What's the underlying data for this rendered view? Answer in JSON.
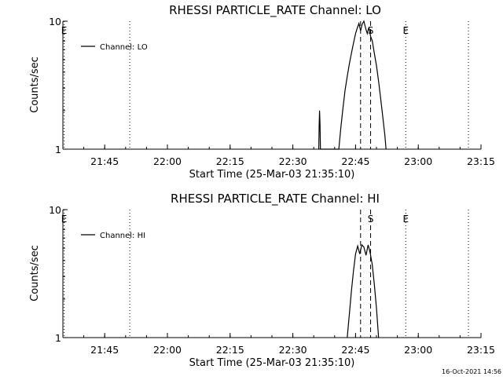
{
  "footer": {
    "timestamp": "16-Oct-2021 14:56"
  },
  "chart_data": [
    {
      "type": "line",
      "title": "RHESSI PARTICLE_RATE Channel: LO",
      "xlabel": "Start Time (25-Mar-03 21:35:10)",
      "ylabel": "Counts/sec",
      "yscale": "log",
      "ylim": [
        1,
        10
      ],
      "xlim_minutes_after_2130": [
        5,
        105
      ],
      "y_ticks": [
        {
          "value": 1,
          "label": "1"
        },
        {
          "value": 10,
          "label": "10"
        }
      ],
      "x_ticks": [
        {
          "t": 15,
          "label": "21:45"
        },
        {
          "t": 30,
          "label": "22:00"
        },
        {
          "t": 45,
          "label": "22:15"
        },
        {
          "t": 60,
          "label": "22:30"
        },
        {
          "t": 75,
          "label": "22:45"
        },
        {
          "t": 90,
          "label": "23:00"
        },
        {
          "t": 105,
          "label": "23:15"
        }
      ],
      "legend": {
        "position": "top-left",
        "entries": [
          "Channel: LO"
        ]
      },
      "event_lines": [
        {
          "t": 5.3,
          "label": "E",
          "style": "dotted"
        },
        {
          "t": 21.0,
          "label": "",
          "style": "dotted"
        },
        {
          "t": 76.2,
          "label": "",
          "style": "dashed"
        },
        {
          "t": 78.6,
          "label": "S",
          "style": "dashed"
        },
        {
          "t": 87.0,
          "label": "E",
          "style": "dotted"
        },
        {
          "t": 102.0,
          "label": "",
          "style": "dotted"
        }
      ],
      "series": [
        {
          "name": "Channel: LO",
          "points": [
            [
              66.2,
              1.0
            ],
            [
              66.3,
              1.55
            ],
            [
              66.4,
              2.0
            ],
            [
              66.5,
              1.55
            ],
            [
              66.6,
              1.0
            ],
            [
              71.0,
              1.0
            ],
            [
              71.5,
              1.5
            ],
            [
              72.0,
              2.1
            ],
            [
              72.5,
              2.9
            ],
            [
              73.0,
              3.7
            ],
            [
              73.5,
              4.6
            ],
            [
              74.0,
              5.6
            ],
            [
              74.5,
              6.7
            ],
            [
              75.0,
              8.0
            ],
            [
              75.4,
              8.8
            ],
            [
              75.8,
              9.6
            ],
            [
              76.2,
              8.4
            ],
            [
              76.6,
              9.5
            ],
            [
              77.0,
              10.0
            ],
            [
              77.4,
              8.8
            ],
            [
              77.8,
              8.0
            ],
            [
              78.2,
              9.0
            ],
            [
              78.6,
              7.6
            ],
            [
              79.0,
              7.0
            ],
            [
              79.5,
              5.6
            ],
            [
              80.0,
              4.5
            ],
            [
              80.5,
              3.4
            ],
            [
              81.0,
              2.5
            ],
            [
              81.5,
              1.8
            ],
            [
              82.0,
              1.3
            ],
            [
              82.3,
              1.0
            ]
          ]
        }
      ]
    },
    {
      "type": "line",
      "title": "RHESSI PARTICLE_RATE Channel: HI",
      "xlabel": "Start Time (25-Mar-03 21:35:10)",
      "ylabel": "Counts/sec",
      "yscale": "log",
      "ylim": [
        1,
        10
      ],
      "xlim_minutes_after_2130": [
        5,
        105
      ],
      "y_ticks": [
        {
          "value": 1,
          "label": "1"
        },
        {
          "value": 10,
          "label": "10"
        }
      ],
      "x_ticks": [
        {
          "t": 15,
          "label": "21:45"
        },
        {
          "t": 30,
          "label": "22:00"
        },
        {
          "t": 45,
          "label": "22:15"
        },
        {
          "t": 60,
          "label": "22:30"
        },
        {
          "t": 75,
          "label": "22:45"
        },
        {
          "t": 90,
          "label": "23:00"
        },
        {
          "t": 105,
          "label": "23:15"
        }
      ],
      "legend": {
        "position": "top-left",
        "entries": [
          "Channel: HI"
        ]
      },
      "event_lines": [
        {
          "t": 5.3,
          "label": "E",
          "style": "dotted"
        },
        {
          "t": 21.0,
          "label": "",
          "style": "dotted"
        },
        {
          "t": 76.2,
          "label": "",
          "style": "dashed"
        },
        {
          "t": 78.6,
          "label": "S",
          "style": "dashed"
        },
        {
          "t": 87.0,
          "label": "E",
          "style": "dotted"
        },
        {
          "t": 102.0,
          "label": "",
          "style": "dotted"
        }
      ],
      "series": [
        {
          "name": "Channel: HI",
          "points": [
            [
              73.0,
              1.0
            ],
            [
              73.5,
              1.5
            ],
            [
              74.0,
              2.3
            ],
            [
              74.5,
              3.3
            ],
            [
              75.0,
              4.5
            ],
            [
              75.5,
              5.2
            ],
            [
              76.0,
              4.5
            ],
            [
              76.5,
              5.3
            ],
            [
              77.0,
              5.1
            ],
            [
              77.5,
              4.4
            ],
            [
              78.0,
              5.3
            ],
            [
              78.5,
              4.6
            ],
            [
              79.0,
              3.7
            ],
            [
              79.5,
              2.6
            ],
            [
              80.0,
              1.7
            ],
            [
              80.5,
              1.0
            ]
          ]
        }
      ]
    }
  ]
}
